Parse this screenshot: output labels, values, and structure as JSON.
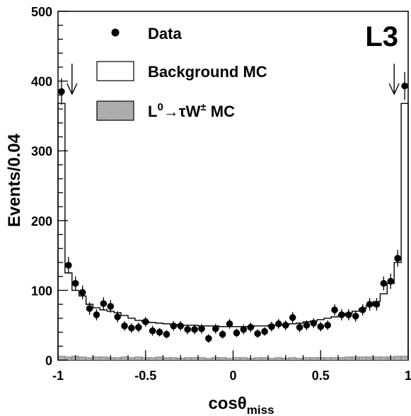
{
  "chart_data": {
    "type": "histogram",
    "title": "",
    "experiment_label": "L3",
    "xlabel": {
      "main": "cosθ",
      "subscript": "miss"
    },
    "ylabel": "Events/0.04",
    "xlim": [
      -1,
      1
    ],
    "ylim": [
      0,
      500
    ],
    "x_ticks": [
      "-1",
      "-0.5",
      "0",
      "0.5",
      "1"
    ],
    "y_ticks": [
      "0",
      "100",
      "200",
      "300",
      "400",
      "500"
    ],
    "grid": false,
    "legend_position": "top-left",
    "legend": {
      "data": "Data",
      "background": "Background MC",
      "signal": {
        "prefix": "L",
        "sup1": "0",
        "arrow": "→τW",
        "sup2": "±",
        "suffix": " MC"
      }
    },
    "cut_arrows_x": [
      -0.92,
      0.92
    ],
    "bin_width": 0.04,
    "bin_edges_start": -1.0,
    "background_mc": [
      368,
      125,
      100,
      92,
      80,
      75,
      72,
      70,
      68,
      64,
      60,
      57,
      55,
      54,
      53,
      52,
      51,
      50,
      50,
      50,
      49,
      49,
      49,
      48,
      48,
      48,
      48,
      48,
      49,
      49,
      50,
      50,
      51,
      52,
      53,
      55,
      56,
      58,
      60,
      62,
      64,
      67,
      70,
      74,
      78,
      84,
      95,
      110,
      140,
      368
    ],
    "signal_mc": [
      6,
      5,
      6,
      5,
      4,
      5,
      5,
      4,
      4,
      5,
      4,
      5,
      4,
      4,
      5,
      4,
      4,
      3,
      4,
      4,
      4,
      3,
      4,
      4,
      3,
      4,
      4,
      3,
      4,
      4,
      3,
      4,
      3,
      4,
      3,
      4,
      4,
      4,
      4,
      4,
      4,
      5,
      5,
      5,
      5,
      5,
      5,
      5,
      6,
      6
    ],
    "data": {
      "x": [
        -0.98,
        -0.94,
        -0.9,
        -0.86,
        -0.82,
        -0.78,
        -0.74,
        -0.7,
        -0.66,
        -0.62,
        -0.58,
        -0.54,
        -0.5,
        -0.46,
        -0.42,
        -0.38,
        -0.34,
        -0.3,
        -0.26,
        -0.22,
        -0.18,
        -0.14,
        -0.1,
        -0.06,
        -0.02,
        0.02,
        0.06,
        0.1,
        0.14,
        0.18,
        0.22,
        0.26,
        0.3,
        0.34,
        0.38,
        0.42,
        0.46,
        0.5,
        0.54,
        0.58,
        0.62,
        0.66,
        0.7,
        0.74,
        0.78,
        0.82,
        0.86,
        0.9,
        0.94,
        0.98
      ],
      "y": [
        385,
        136,
        110,
        97,
        74,
        65,
        81,
        77,
        62,
        49,
        46,
        47,
        55,
        42,
        40,
        37,
        49,
        49,
        44,
        44,
        45,
        31,
        45,
        37,
        52,
        39,
        44,
        47,
        38,
        41,
        48,
        52,
        50,
        61,
        47,
        50,
        53,
        48,
        50,
        72,
        65,
        65,
        63,
        72,
        80,
        80,
        110,
        113,
        146,
        393
      ],
      "err": [
        19,
        12,
        10,
        10,
        9,
        8,
        9,
        9,
        8,
        7,
        7,
        7,
        7,
        7,
        6,
        6,
        7,
        7,
        7,
        7,
        7,
        6,
        7,
        6,
        7,
        6,
        7,
        7,
        6,
        6,
        7,
        7,
        7,
        8,
        7,
        7,
        7,
        7,
        7,
        8,
        8,
        8,
        8,
        8,
        9,
        9,
        10,
        11,
        12,
        20
      ]
    }
  }
}
